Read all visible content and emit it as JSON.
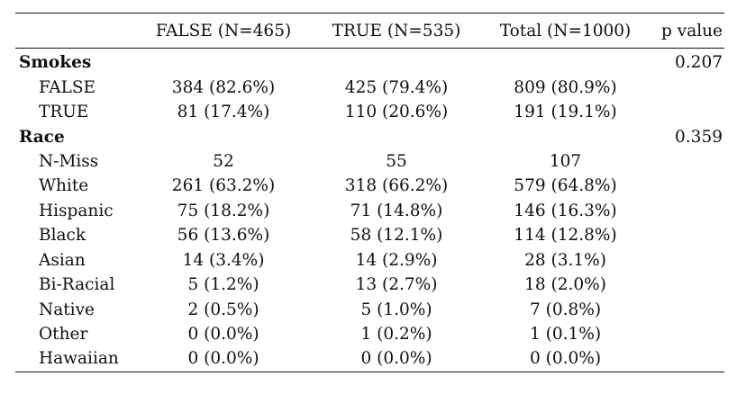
{
  "table": {
    "headers": {
      "label": "",
      "false_col": "FALSE (N=465)",
      "true_col": "TRUE (N=535)",
      "total_col": "Total (N=1000)",
      "p_col": "p value"
    },
    "groups": [
      {
        "name": "Smokes",
        "p_value": "0.207",
        "rows": [
          {
            "label": "FALSE",
            "false_col": "384 (82.6%)",
            "true_col": "425 (79.4%)",
            "total_col": "809 (80.9%)"
          },
          {
            "label": "TRUE",
            "false_col": "81 (17.4%)",
            "true_col": "110 (20.6%)",
            "total_col": "191 (19.1%)"
          }
        ]
      },
      {
        "name": "Race",
        "p_value": "0.359",
        "rows": [
          {
            "label": "N-Miss",
            "false_col": "52",
            "true_col": "55",
            "total_col": "107"
          },
          {
            "label": "White",
            "false_col": "261 (63.2%)",
            "true_col": "318 (66.2%)",
            "total_col": "579 (64.8%)"
          },
          {
            "label": "Hispanic",
            "false_col": "75 (18.2%)",
            "true_col": "71 (14.8%)",
            "total_col": "146 (16.3%)"
          },
          {
            "label": "Black",
            "false_col": "56 (13.6%)",
            "true_col": "58 (12.1%)",
            "total_col": "114 (12.8%)"
          },
          {
            "label": "Asian",
            "false_col": "14 (3.4%)",
            "true_col": "14 (2.9%)",
            "total_col": "28 (3.1%)"
          },
          {
            "label": "Bi-Racial",
            "false_col": "5 (1.2%)",
            "true_col": "13 (2.7%)",
            "total_col": "18 (2.0%)"
          },
          {
            "label": "Native",
            "false_col": "2 (0.5%)",
            "true_col": "5 (1.0%)",
            "total_col": "7 (0.8%)"
          },
          {
            "label": "Other",
            "false_col": "0 (0.0%)",
            "true_col": "1 (0.2%)",
            "total_col": "1 (0.1%)"
          },
          {
            "label": "Hawaiian",
            "false_col": "0 (0.0%)",
            "true_col": "0 (0.0%)",
            "total_col": "0 (0.0%)"
          }
        ]
      }
    ]
  }
}
